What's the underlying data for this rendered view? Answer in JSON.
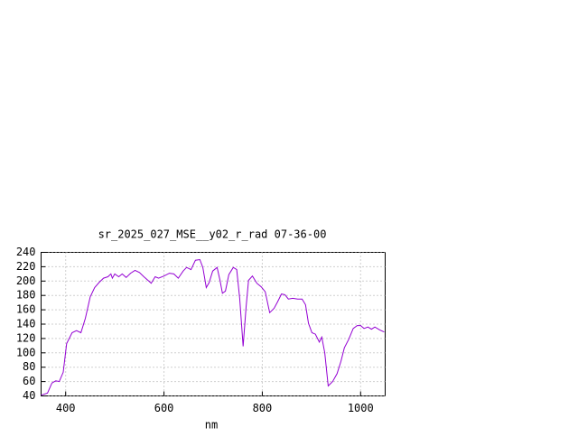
{
  "chart_data": {
    "type": "line",
    "title": "sr_2025_027_MSE__y02_r_rad 07-36-00",
    "x_label": "nm",
    "x": [
      350,
      363,
      372,
      380,
      387,
      395,
      402,
      413,
      422,
      431,
      440,
      450,
      459,
      468,
      477,
      486,
      492,
      495,
      500,
      508,
      515,
      523,
      532,
      541,
      550,
      559,
      569,
      574,
      582,
      589,
      600,
      611,
      620,
      629,
      639,
      646,
      655,
      664,
      673,
      679,
      686,
      692,
      699,
      708,
      714,
      719,
      725,
      732,
      741,
      748,
      754,
      761,
      767,
      772,
      780,
      789,
      798,
      806,
      815,
      824,
      831,
      839,
      846,
      853,
      862,
      872,
      881,
      888,
      894,
      901,
      908,
      916,
      921,
      927,
      934,
      943,
      952,
      960,
      967,
      976,
      985,
      993,
      1000,
      1007,
      1015,
      1022,
      1029,
      1039,
      1048
    ],
    "series": [
      {
        "color": "#9400d3",
        "values": [
          41,
          44,
          58,
          61,
          60,
          73,
          113,
          128,
          131,
          128,
          148,
          178,
          191,
          198,
          204,
          206,
          210,
          204,
          210,
          206,
          210,
          205,
          211,
          215,
          212,
          206,
          200,
          197,
          206,
          204,
          207,
          211,
          210,
          204,
          214,
          219,
          216,
          229,
          230,
          219,
          191,
          198,
          214,
          219,
          201,
          183,
          186,
          209,
          219,
          216,
          176,
          109,
          164,
          201,
          207,
          197,
          192,
          185,
          156,
          162,
          171,
          182,
          181,
          175,
          176,
          175,
          175,
          167,
          141,
          128,
          126,
          115,
          122,
          100,
          54,
          60,
          71,
          88,
          107,
          119,
          134,
          138,
          138,
          134,
          136,
          133,
          136,
          132,
          129
        ]
      }
    ],
    "xlim": [
      350,
      1050
    ],
    "ylim": [
      40,
      240
    ],
    "xticks": [
      400,
      600,
      800,
      1000
    ],
    "yticks": [
      40,
      60,
      80,
      100,
      120,
      140,
      160,
      180,
      200,
      220,
      240
    ],
    "grid": true
  }
}
